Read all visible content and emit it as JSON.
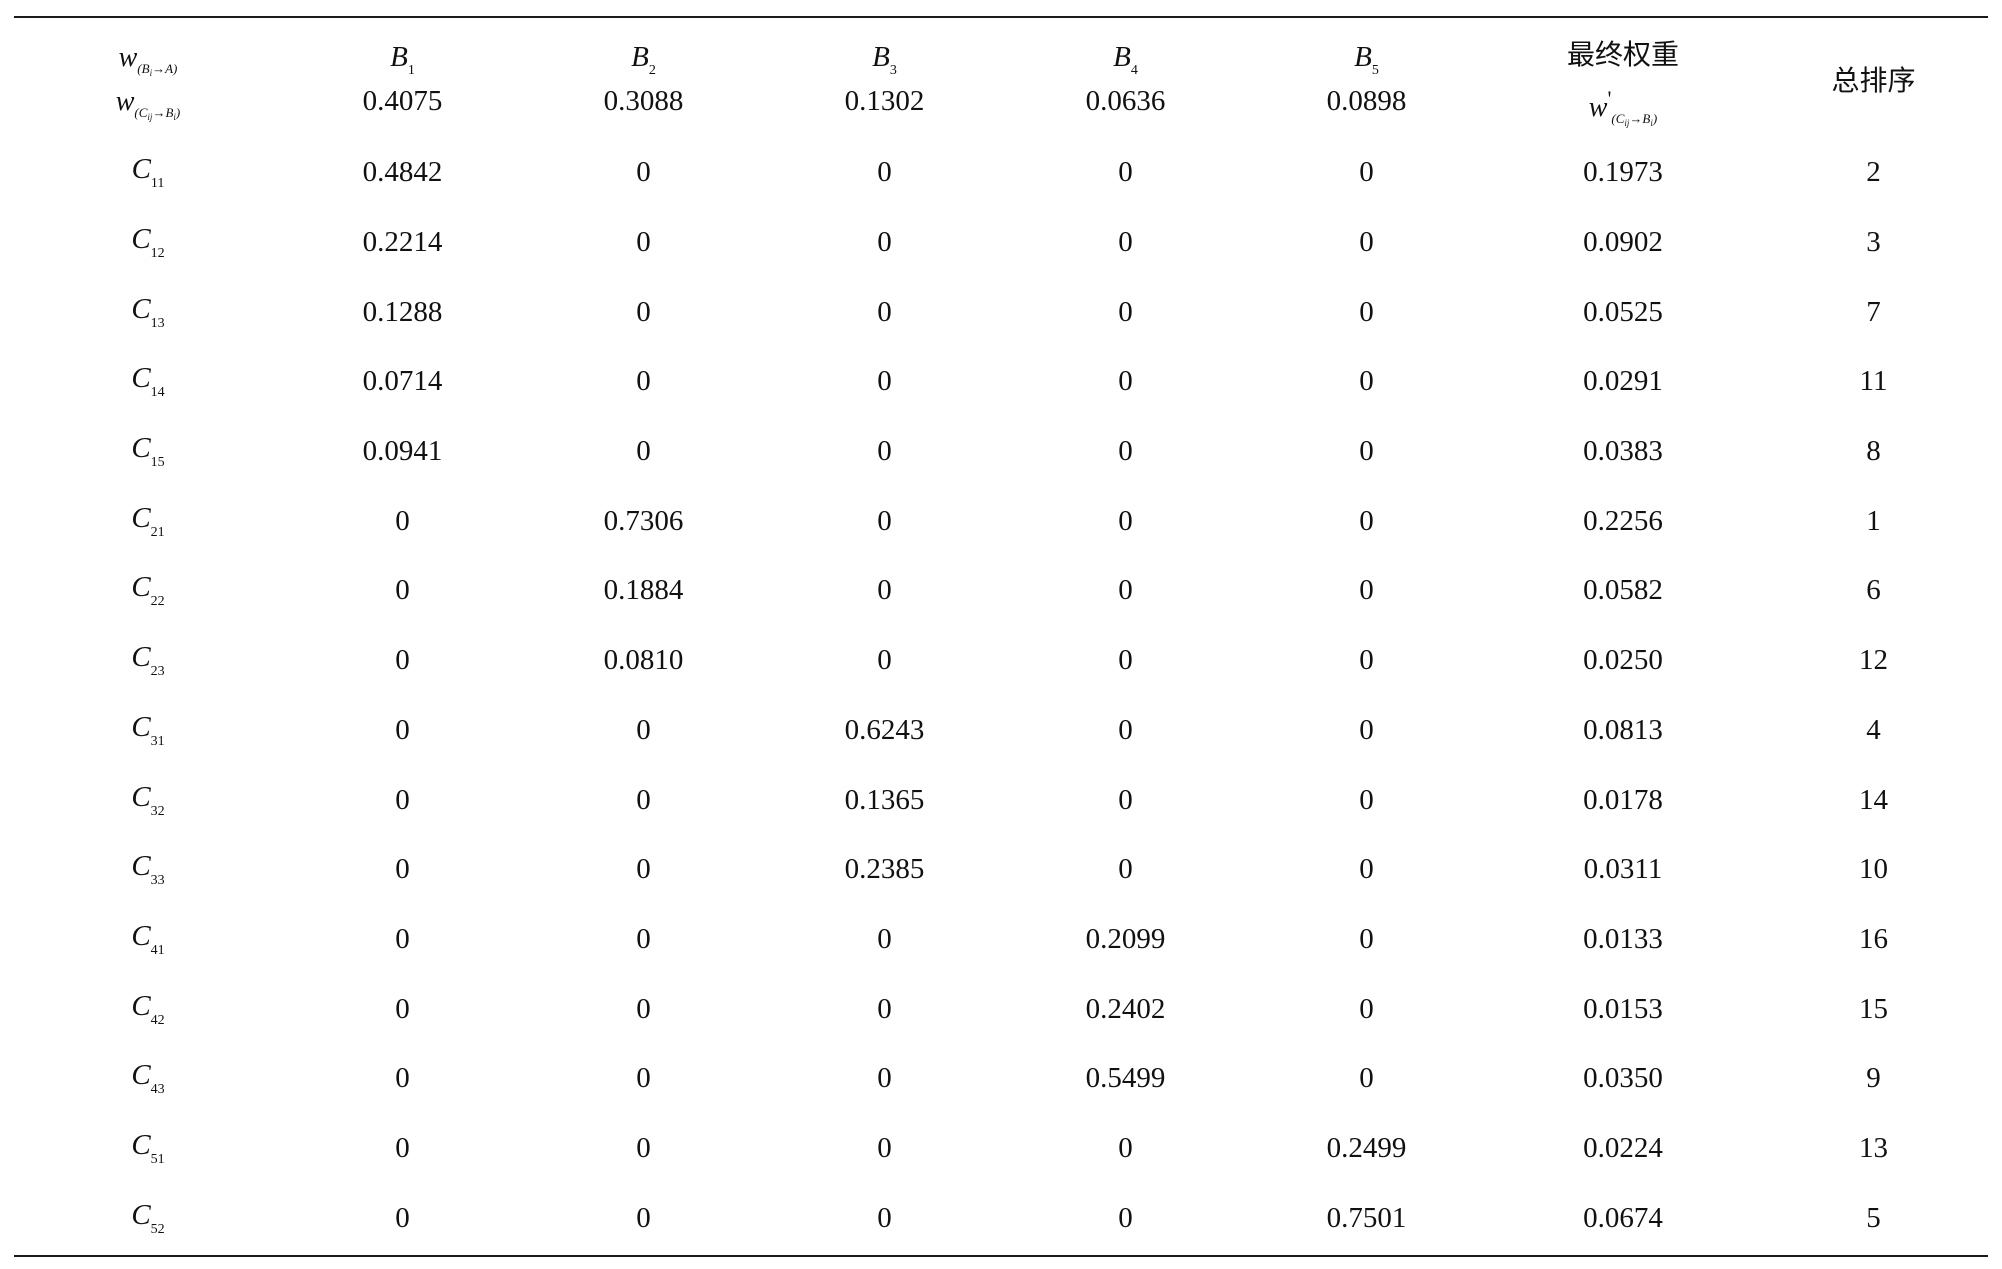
{
  "header": {
    "w_top": {
      "symbol": "w",
      "subscript": "(B_i→A)"
    },
    "w_bottom": {
      "symbol": "w",
      "subscript": "(C_ij→B_i)"
    },
    "b_columns": [
      {
        "letter": "B",
        "sub": "1",
        "weight": "0.4075"
      },
      {
        "letter": "B",
        "sub": "2",
        "weight": "0.3088"
      },
      {
        "letter": "B",
        "sub": "3",
        "weight": "0.1302"
      },
      {
        "letter": "B",
        "sub": "4",
        "weight": "0.0636"
      },
      {
        "letter": "B",
        "sub": "5",
        "weight": "0.0898"
      }
    ],
    "final_weight_label": "最终权重",
    "final_weight_symbol": {
      "symbol": "w",
      "prime": "'",
      "subscript": "(C_ij→B_i)"
    },
    "rank_label": "总排序"
  },
  "rows": [
    {
      "letter": "C",
      "sub": "11",
      "values": [
        "0.4842",
        "0",
        "0",
        "0",
        "0"
      ],
      "final": "0.1973",
      "rank": "2"
    },
    {
      "letter": "C",
      "sub": "12",
      "values": [
        "0.2214",
        "0",
        "0",
        "0",
        "0"
      ],
      "final": "0.0902",
      "rank": "3"
    },
    {
      "letter": "C",
      "sub": "13",
      "values": [
        "0.1288",
        "0",
        "0",
        "0",
        "0"
      ],
      "final": "0.0525",
      "rank": "7"
    },
    {
      "letter": "C",
      "sub": "14",
      "values": [
        "0.0714",
        "0",
        "0",
        "0",
        "0"
      ],
      "final": "0.0291",
      "rank": "11"
    },
    {
      "letter": "C",
      "sub": "15",
      "values": [
        "0.0941",
        "0",
        "0",
        "0",
        "0"
      ],
      "final": "0.0383",
      "rank": "8"
    },
    {
      "letter": "C",
      "sub": "21",
      "values": [
        "0",
        "0.7306",
        "0",
        "0",
        "0"
      ],
      "final": "0.2256",
      "rank": "1"
    },
    {
      "letter": "C",
      "sub": "22",
      "values": [
        "0",
        "0.1884",
        "0",
        "0",
        "0"
      ],
      "final": "0.0582",
      "rank": "6"
    },
    {
      "letter": "C",
      "sub": "23",
      "values": [
        "0",
        "0.0810",
        "0",
        "0",
        "0"
      ],
      "final": "0.0250",
      "rank": "12"
    },
    {
      "letter": "C",
      "sub": "31",
      "values": [
        "0",
        "0",
        "0.6243",
        "0",
        "0"
      ],
      "final": "0.0813",
      "rank": "4"
    },
    {
      "letter": "C",
      "sub": "32",
      "values": [
        "0",
        "0",
        "0.1365",
        "0",
        "0"
      ],
      "final": "0.0178",
      "rank": "14"
    },
    {
      "letter": "C",
      "sub": "33",
      "values": [
        "0",
        "0",
        "0.2385",
        "0",
        "0"
      ],
      "final": "0.0311",
      "rank": "10"
    },
    {
      "letter": "C",
      "sub": "41",
      "values": [
        "0",
        "0",
        "0",
        "0.2099",
        "0"
      ],
      "final": "0.0133",
      "rank": "16"
    },
    {
      "letter": "C",
      "sub": "42",
      "values": [
        "0",
        "0",
        "0",
        "0.2402",
        "0"
      ],
      "final": "0.0153",
      "rank": "15"
    },
    {
      "letter": "C",
      "sub": "43",
      "values": [
        "0",
        "0",
        "0",
        "0.5499",
        "0"
      ],
      "final": "0.0350",
      "rank": "9"
    },
    {
      "letter": "C",
      "sub": "51",
      "values": [
        "0",
        "0",
        "0",
        "0",
        "0.2499"
      ],
      "final": "0.0224",
      "rank": "13"
    },
    {
      "letter": "C",
      "sub": "52",
      "values": [
        "0",
        "0",
        "0",
        "0",
        "0.7501"
      ],
      "final": "0.0674",
      "rank": "5"
    }
  ]
}
